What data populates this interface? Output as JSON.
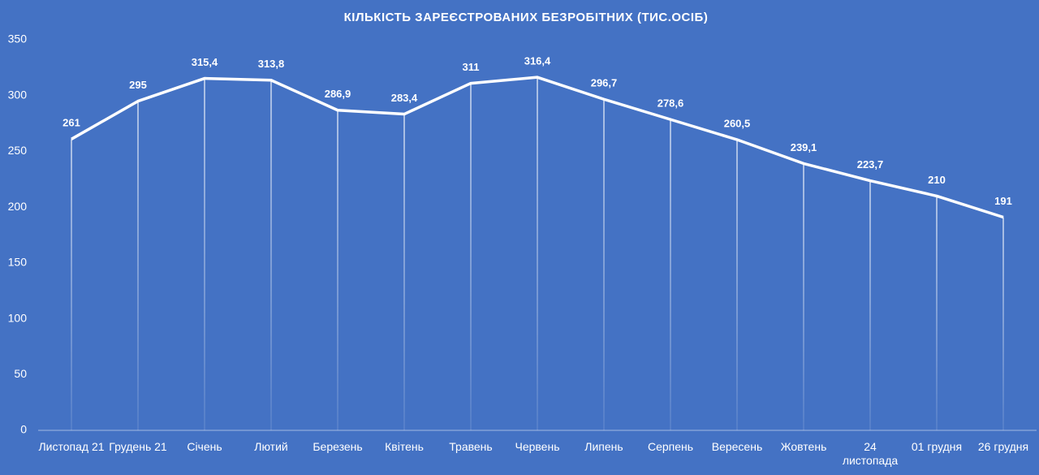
{
  "chart_data": {
    "type": "line",
    "title": "КІЛЬКІСТЬ ЗАРЕЄСТРОВАНИХ БЕЗРОБІТНИХ (ТИС.ОСІБ)",
    "categories": [
      "Листопад 21",
      "Грудень 21",
      "Січень",
      "Лютий",
      "Березень",
      "Квітень",
      "Травень",
      "Червень",
      "Липень",
      "Серпень",
      "Вересень",
      "Жовтень",
      "24 листопада",
      "01 грудня",
      "26 грудня"
    ],
    "series": [
      {
        "color": "#ffffff",
        "values": [
          261,
          295,
          315.4,
          313.8,
          286.9,
          283.4,
          311,
          316.4,
          296.7,
          278.6,
          260.5,
          239.1,
          223.7,
          210,
          191
        ],
        "value_labels": [
          "261",
          "295",
          "315,4",
          "313,8",
          "286,9",
          "283,4",
          "311",
          "316,4",
          "296,7",
          "278,6",
          "260,5",
          "239,1",
          "223,7",
          "210",
          "191"
        ]
      }
    ],
    "ylim": [
      0,
      350
    ],
    "yticks": [
      0,
      50,
      100,
      150,
      200,
      250,
      300,
      350
    ],
    "grid": false
  }
}
